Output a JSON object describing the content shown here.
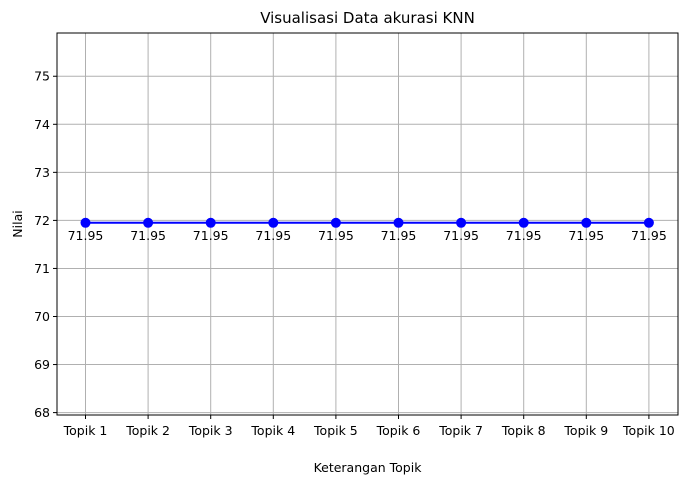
{
  "chart_data": {
    "type": "line",
    "title": "Visualisasi Data akurasi KNN",
    "xlabel": "Keterangan Topik",
    "ylabel": "Nilai",
    "categories": [
      "Topik 1",
      "Topik 2",
      "Topik 3",
      "Topik 4",
      "Topik 5",
      "Topik 6",
      "Topik 7",
      "Topik 8",
      "Topik 9",
      "Topik 10"
    ],
    "series": [
      {
        "values": [
          71.95,
          71.95,
          71.95,
          71.95,
          71.95,
          71.95,
          71.95,
          71.95,
          71.95,
          71.95
        ],
        "data_labels": [
          "71.95",
          "71.95",
          "71.95",
          "71.95",
          "71.95",
          "71.95",
          "71.95",
          "71.95",
          "71.95",
          "71.95"
        ],
        "color": "#0000ff",
        "marker": "circle"
      }
    ],
    "yticks": [
      68,
      69,
      70,
      71,
      72,
      73,
      74,
      75
    ],
    "ylim": [
      67.95,
      75.9
    ],
    "grid": true,
    "legend": "none"
  }
}
